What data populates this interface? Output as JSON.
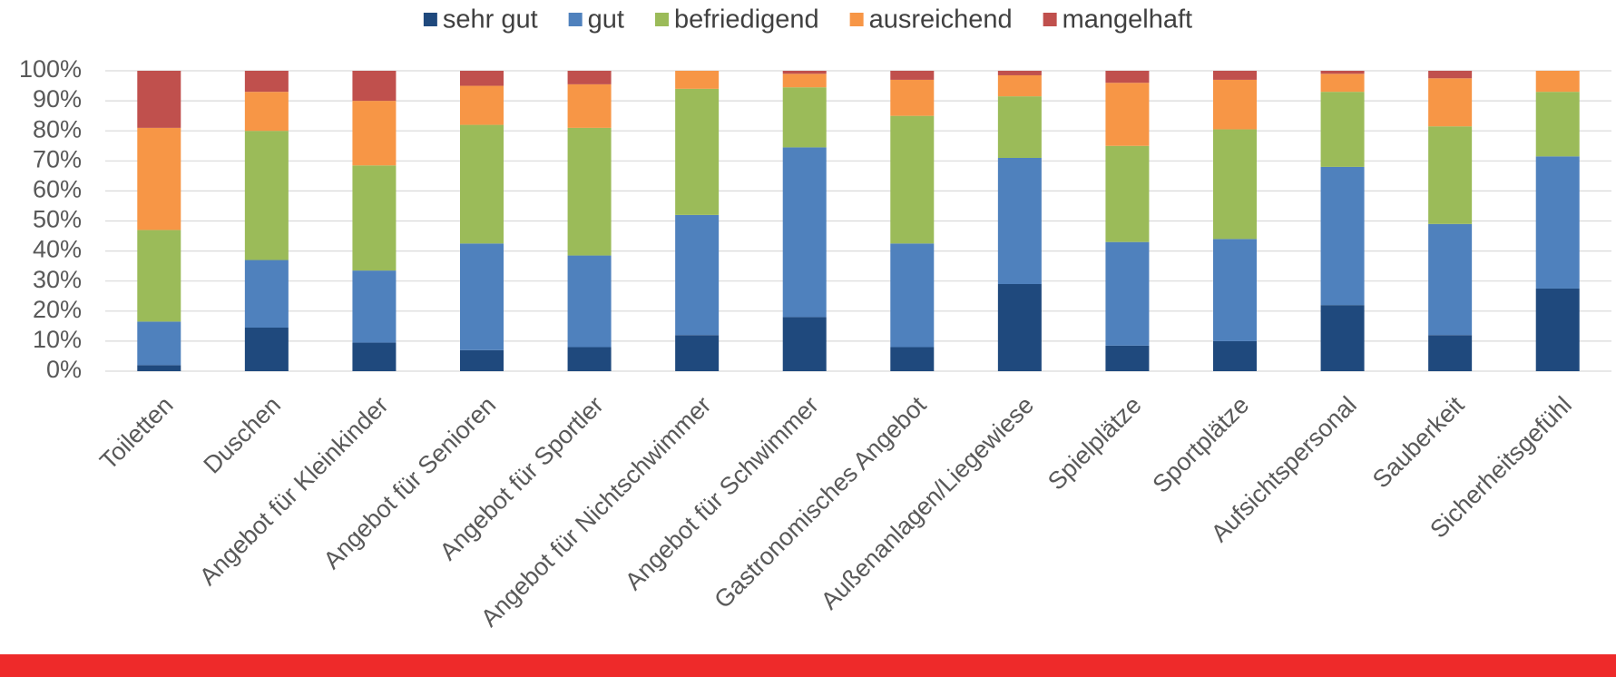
{
  "chart_data": {
    "type": "stacked_bar",
    "categories": [
      "Toiletten",
      "Duschen",
      "Angebot für Kleinkinder",
      "Angebot für Senioren",
      "Angebot für Sportler",
      "Angebot für Nichtschwimmer",
      "Angebot für Schwimmer",
      "Gastronomisches Angebot",
      "Außenanlagen/Liegewiese",
      "Spielplätze",
      "Sportplätze",
      "Aufsichtspersonal",
      "Sauberkeit",
      "Sicherheitsgefühl"
    ],
    "series": [
      {
        "name": "sehr gut",
        "color": "#1f497d",
        "values": [
          2,
          14.5,
          9.5,
          7,
          8,
          12,
          18,
          8,
          29,
          8.5,
          10,
          22,
          12,
          27.5
        ]
      },
      {
        "name": "gut",
        "color": "#4f81bd",
        "values": [
          14.5,
          22.5,
          24,
          35.5,
          30.5,
          40,
          56.5,
          34.5,
          42,
          34.5,
          34,
          46,
          37,
          44
        ]
      },
      {
        "name": "befriedigend",
        "color": "#9bbb59",
        "values": [
          30.5,
          43,
          35,
          39.5,
          42.5,
          42,
          20,
          42.5,
          20.5,
          32,
          36.5,
          25,
          32.5,
          21.5
        ]
      },
      {
        "name": "ausreichend",
        "color": "#f79646",
        "values": [
          34,
          13,
          21.5,
          13,
          14.5,
          6,
          4.5,
          12,
          7,
          21,
          16.5,
          6,
          16,
          7
        ]
      },
      {
        "name": "mangelhaft",
        "color": "#c0504d",
        "values": [
          19,
          7,
          10,
          5,
          4.5,
          0,
          1,
          3,
          1.5,
          4,
          3,
          1,
          2.5,
          0
        ]
      }
    ],
    "ylim": [
      0,
      100
    ],
    "yticks": [
      {
        "value": 0,
        "label": "0%"
      },
      {
        "value": 10,
        "label": "10%"
      },
      {
        "value": 20,
        "label": "20%"
      },
      {
        "value": 30,
        "label": "30%"
      },
      {
        "value": 40,
        "label": "40%"
      },
      {
        "value": 50,
        "label": "50%"
      },
      {
        "value": 60,
        "label": "60%"
      },
      {
        "value": 70,
        "label": "70%"
      },
      {
        "value": 80,
        "label": "80%"
      },
      {
        "value": 90,
        "label": "90%"
      },
      {
        "value": 100,
        "label": "100%"
      }
    ],
    "grid": true,
    "legend": "top"
  }
}
